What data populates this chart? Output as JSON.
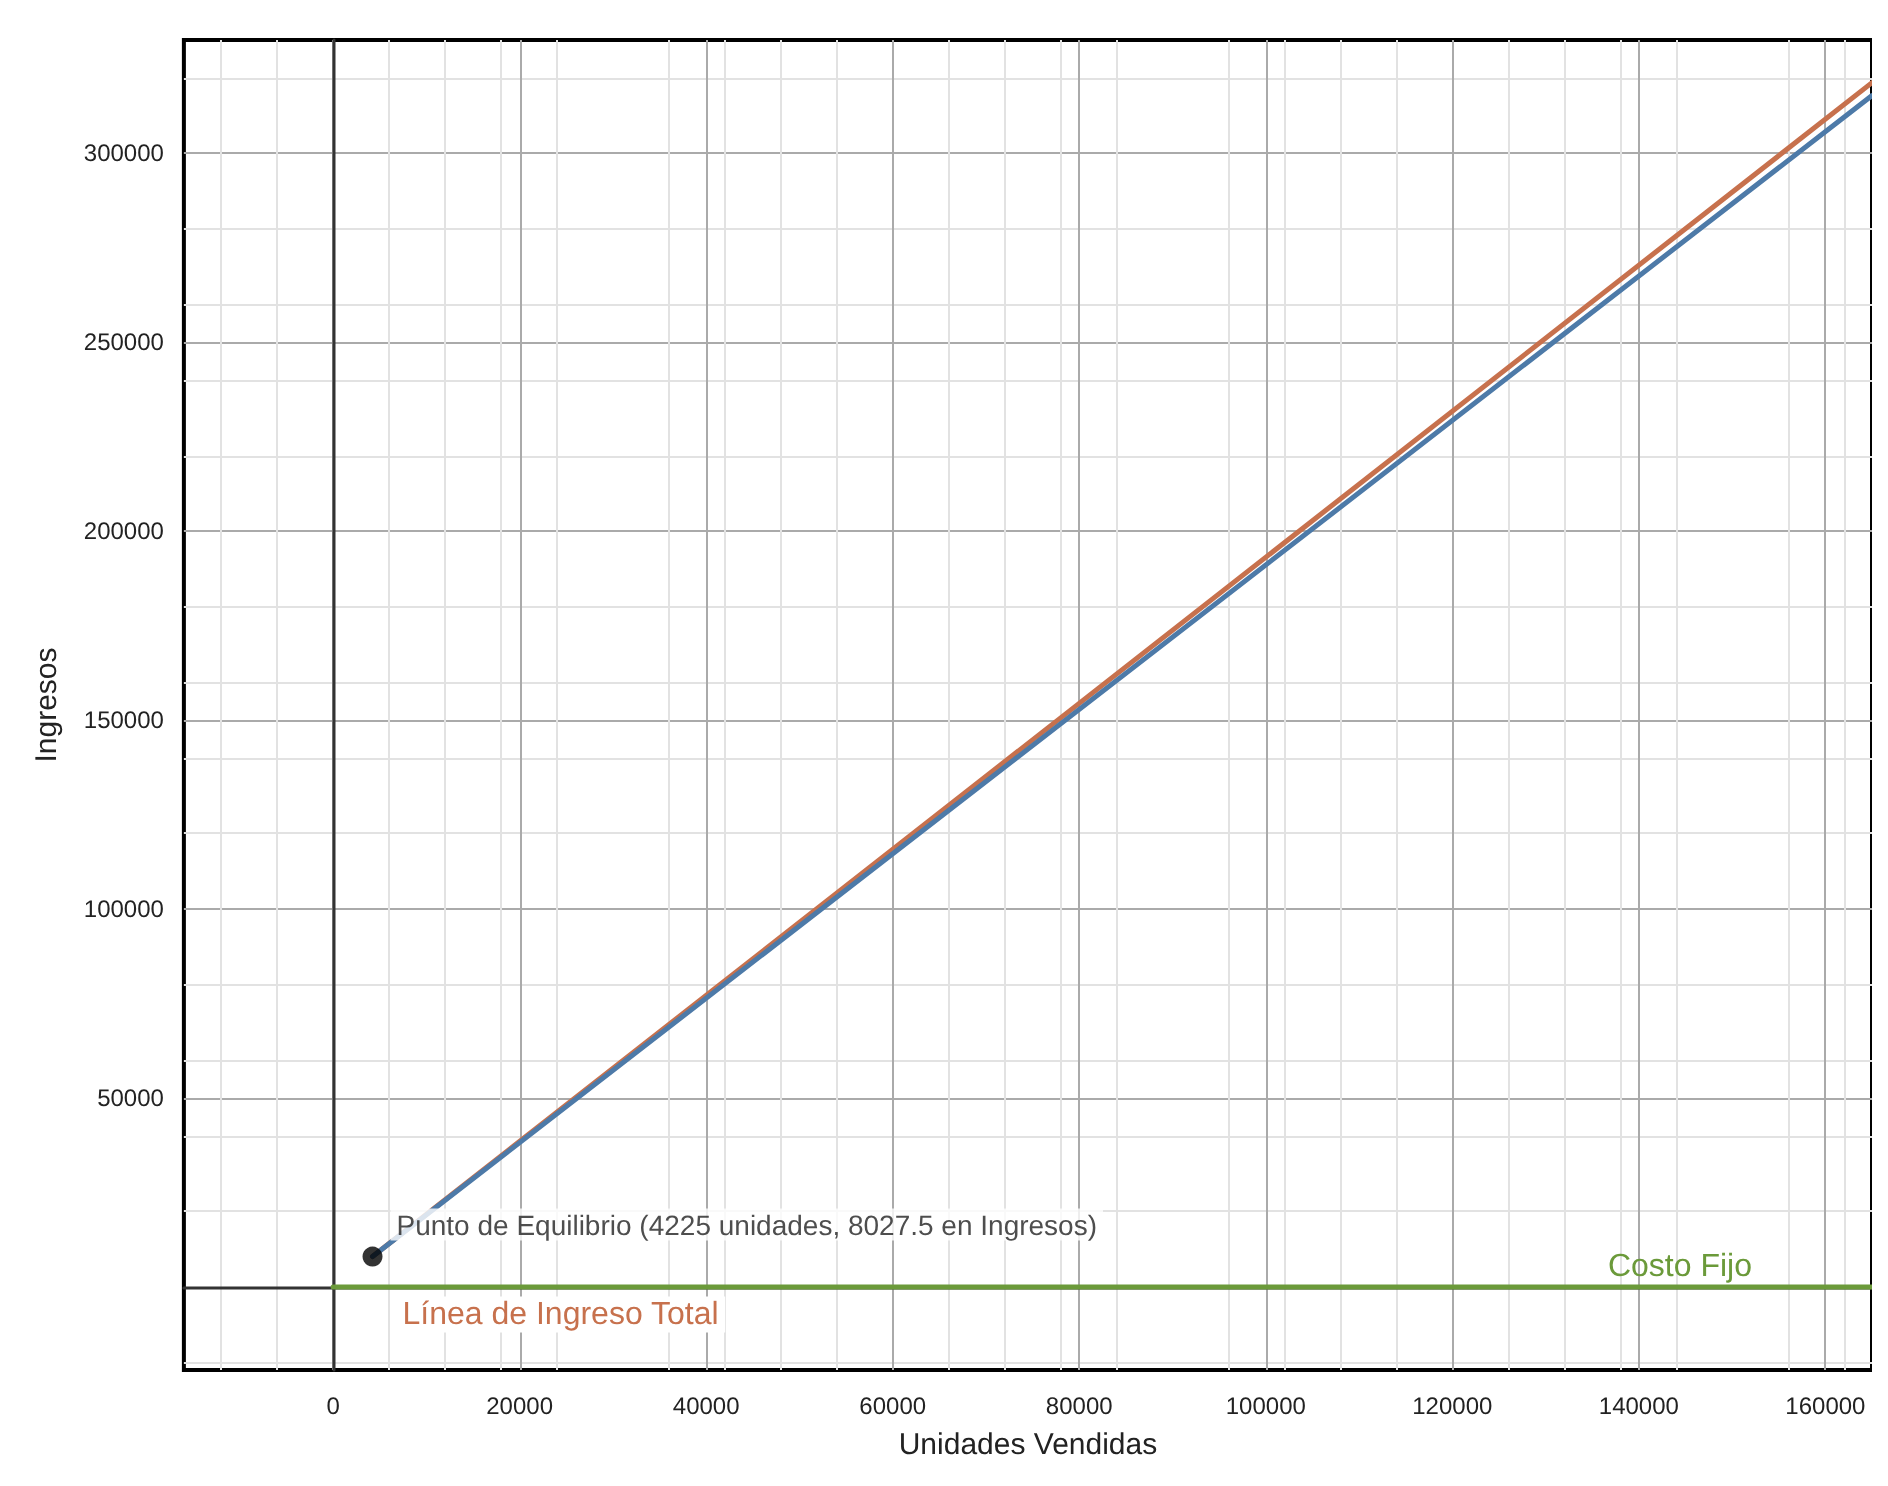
{
  "chart_data": {
    "type": "line",
    "xlabel": "Unidades Vendidas",
    "ylabel": "Ingresos",
    "xlim": [
      -16000,
      165000
    ],
    "ylim": [
      -22000,
      330000
    ],
    "xticks": [
      0,
      20000,
      40000,
      60000,
      80000,
      100000,
      120000,
      140000,
      160000
    ],
    "yticks": [
      50000,
      100000,
      150000,
      200000,
      250000,
      300000
    ],
    "grid": true,
    "legend": false,
    "marker": "none",
    "line_style": "solid",
    "series": [
      {
        "name": "Línea de Ingreso Total",
        "color": "#c7714d",
        "x": [
          4225,
          165000
        ],
        "values": [
          8027.5,
          318700
        ]
      },
      {
        "color": "#4d7aa8",
        "x": [
          4225,
          165000
        ],
        "values": [
          8027.5,
          315300
        ]
      },
      {
        "name": "Costo Fijo",
        "color": "#6b9a3a",
        "x": [
          0,
          165000
        ],
        "values": [
          0,
          0
        ]
      },
      {
        "type": "scatter",
        "marker": "circle",
        "color": "#000000",
        "x": [
          4225
        ],
        "values": [
          8027.5
        ]
      }
    ],
    "annotations": [
      {
        "text": "Punto de Equilibrio (4225 unidades, 8027.5 en Ingresos)",
        "x": 4225,
        "y": 8027.5
      }
    ]
  }
}
